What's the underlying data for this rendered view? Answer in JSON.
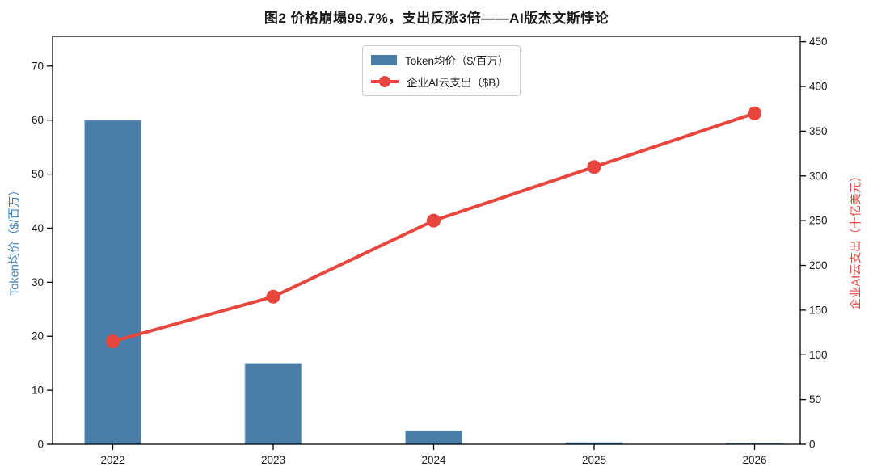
{
  "figure": {
    "title": "图2 价格崩塌99.7%，支出反涨3倍——AI版杰文斯悖论"
  },
  "chart_data": {
    "type": "bar",
    "subtype": "bar+line dual axis",
    "categories": [
      "2022",
      "2023",
      "2024",
      "2025",
      "2026"
    ],
    "series": [
      {
        "name": "Token均价（$/百万）",
        "type": "bar",
        "axis": "left",
        "color": "#4A7EA8",
        "edge_color": "#A9C7DC",
        "values": [
          60,
          15,
          2.5,
          0.3,
          0.18
        ]
      },
      {
        "name": "企业AI云支出（$B）",
        "type": "line",
        "axis": "right",
        "color": "#E8463C",
        "marker": "circle",
        "values": [
          115,
          165,
          250,
          310,
          370
        ]
      }
    ],
    "left_axis": {
      "label": "Token均价（$/百万）",
      "label_color": "#3D7DB5",
      "tick_color": "#1a1a1a",
      "ticks": [
        0,
        10,
        20,
        30,
        40,
        50,
        60,
        70
      ],
      "ylim": [
        0,
        75.5
      ]
    },
    "right_axis": {
      "label": "企业AI云支出（十亿美元）",
      "label_color": "#E8463C",
      "tick_color": "#1a1a1a",
      "ticks": [
        0,
        50,
        100,
        150,
        200,
        250,
        300,
        350,
        400,
        450
      ],
      "ylim": [
        0,
        456
      ]
    },
    "xlabel": "",
    "grid": false,
    "legend_position": "upper center",
    "spine_color": "#000000"
  }
}
